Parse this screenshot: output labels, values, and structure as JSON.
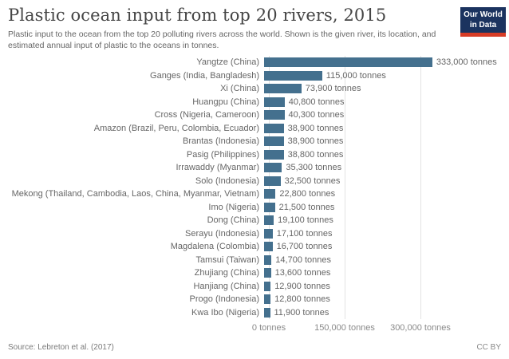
{
  "header": {
    "title": "Plastic ocean input from top 20 rivers, 2015",
    "subtitle": "Plastic input to the ocean from the top 20 polluting rivers across the world. Shown is the given river, its location, and estimated annual input of plastic to the oceans in tonnes."
  },
  "logo": {
    "line1": "Our World",
    "line2": "in Data",
    "bg_color": "#1b335f",
    "stripe_color": "#d73c26"
  },
  "chart_data": {
    "type": "bar",
    "orientation": "horizontal",
    "title": "Plastic ocean input from top 20 rivers, 2015",
    "xlabel": "tonnes",
    "ylabel": "",
    "xlim": [
      0,
      300000
    ],
    "grid": true,
    "bar_color": "#44708e",
    "categories": [
      "Yangtze (China)",
      "Ganges (India, Bangladesh)",
      "Xi (China)",
      "Huangpu (China)",
      "Cross (Nigeria, Cameroon)",
      "Amazon (Brazil, Peru, Colombia, Ecuador)",
      "Brantas (Indonesia)",
      "Pasig (Philippines)",
      "Irrawaddy (Myanmar)",
      "Solo (Indonesia)",
      "Mekong (Thailand, Cambodia, Laos, China, Myanmar, Vietnam)",
      "Imo (Nigeria)",
      "Dong (China)",
      "Serayu (Indonesia)",
      "Magdalena (Colombia)",
      "Tamsui (Taiwan)",
      "Zhujiang (China)",
      "Hanjiang (China)",
      "Progo (Indonesia)",
      "Kwa Ibo (Nigeria)"
    ],
    "values": [
      333000,
      115000,
      73900,
      40800,
      40300,
      38900,
      38900,
      38800,
      35300,
      32500,
      22800,
      21500,
      19100,
      17100,
      16700,
      14700,
      13600,
      12900,
      12800,
      11900
    ],
    "value_labels": [
      "333,000 tonnes",
      "115,000 tonnes",
      "73,900 tonnes",
      "40,800 tonnes",
      "40,300 tonnes",
      "38,900 tonnes",
      "38,900 tonnes",
      "38,800 tonnes",
      "35,300 tonnes",
      "32,500 tonnes",
      "22,800 tonnes",
      "21,500 tonnes",
      "19,100 tonnes",
      "17,100 tonnes",
      "16,700 tonnes",
      "14,700 tonnes",
      "13,600 tonnes",
      "12,900 tonnes",
      "12,800 tonnes",
      "11,900 tonnes"
    ],
    "x_ticks": [
      {
        "value": 0,
        "label": "0 tonnes"
      },
      {
        "value": 150000,
        "label": "150,000 tonnes"
      },
      {
        "value": 300000,
        "label": "300,000 tonnes"
      }
    ]
  },
  "footer": {
    "source": "Source: Lebreton et al. (2017)",
    "license": "CC BY"
  }
}
